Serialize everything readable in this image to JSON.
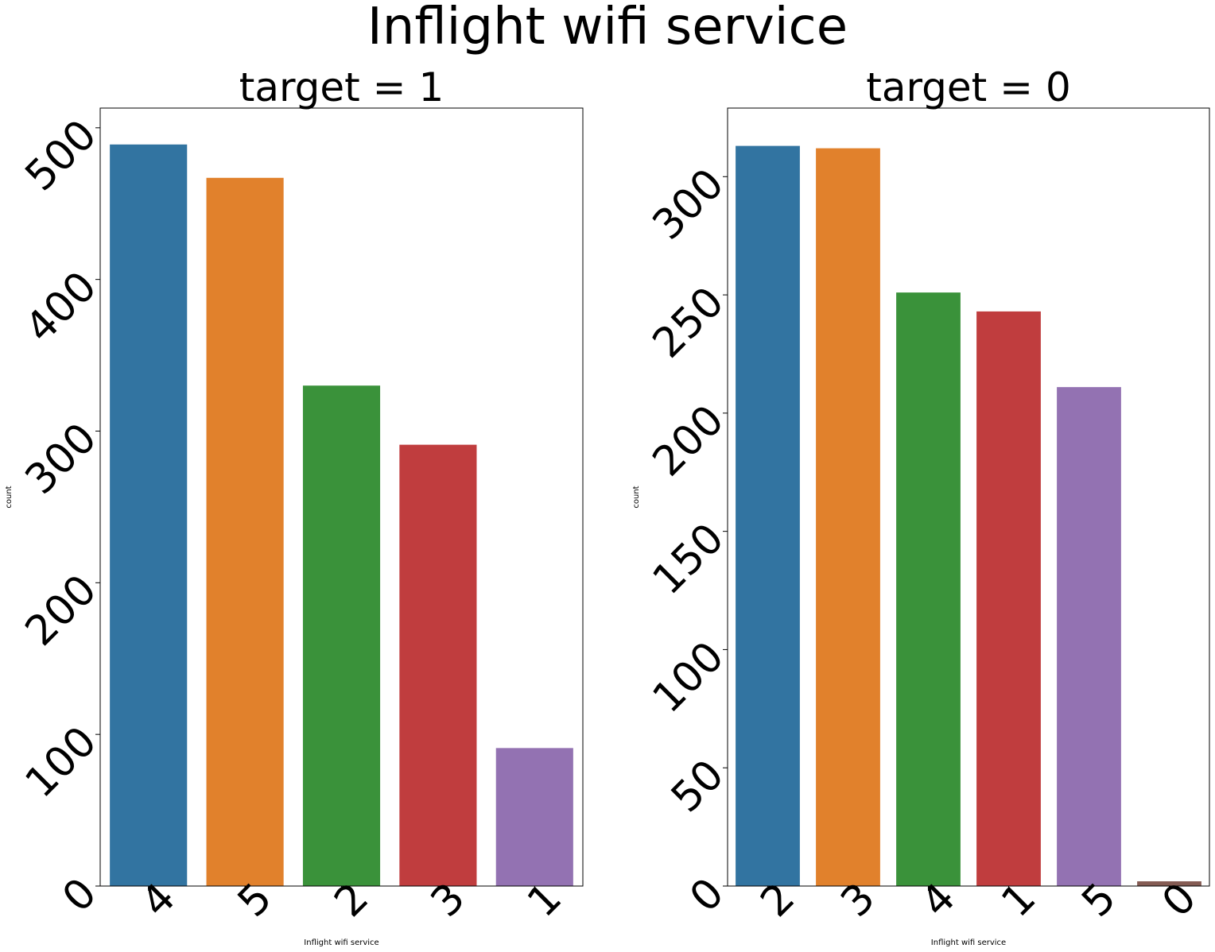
{
  "figure_title": "Inflight wifi service",
  "chart_data": [
    {
      "type": "bar",
      "title": "target = 1",
      "xlabel": "Inflight wifi service",
      "ylabel": "count",
      "categories": [
        "4",
        "5",
        "2",
        "3",
        "1"
      ],
      "values": [
        489,
        467,
        330,
        291,
        91
      ],
      "colors": [
        "#3274a1",
        "#e1812c",
        "#3a923a",
        "#c03d3e",
        "#9372b2"
      ],
      "ylim": [
        0,
        513
      ],
      "yticks": [
        0,
        100,
        200,
        300,
        400,
        500
      ],
      "grid": false
    },
    {
      "type": "bar",
      "title": "target = 0",
      "xlabel": "Inflight wifi service",
      "ylabel": "count",
      "categories": [
        "2",
        "3",
        "4",
        "1",
        "5",
        "0"
      ],
      "values": [
        313,
        312,
        251,
        243,
        211,
        2
      ],
      "colors": [
        "#3274a1",
        "#e1812c",
        "#3a923a",
        "#c03d3e",
        "#9372b2",
        "#845b53"
      ],
      "ylim": [
        0,
        329
      ],
      "yticks": [
        0,
        50,
        100,
        150,
        200,
        250,
        300
      ],
      "grid": false
    }
  ]
}
